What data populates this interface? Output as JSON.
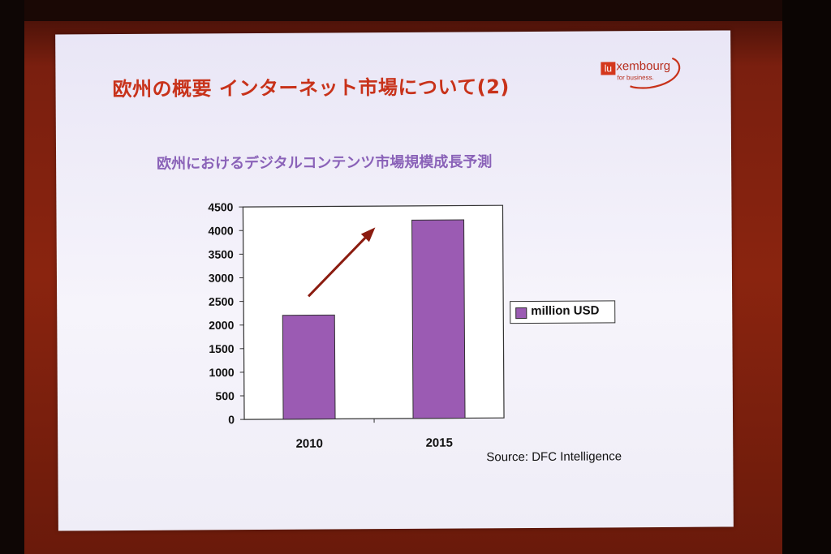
{
  "slide": {
    "title": "欧州の概要 インターネット市場について(2)",
    "logo": {
      "mark": "lu",
      "word": "xembourg",
      "tagline": "for business."
    },
    "source": "Source: DFC Intelligence"
  },
  "colors": {
    "title": "#c8321a",
    "subtitle": "#8a62b8",
    "bar": "#9b5bb3",
    "arrow": "#8b1c10"
  },
  "chart_data": {
    "type": "bar",
    "title": "欧州におけるデジタルコンテンツ市場規模成長予測",
    "categories": [
      "2010",
      "2015"
    ],
    "series": [
      {
        "name": "million USD",
        "values": [
          2200,
          4200
        ]
      }
    ],
    "ylim": [
      0,
      4500
    ],
    "yticks": [
      "0",
      "500",
      "1000",
      "1500",
      "2000",
      "2500",
      "3000",
      "3500",
      "4000",
      "4500"
    ],
    "legend": "right",
    "grid": false,
    "annotation": "arrow-up-right"
  }
}
